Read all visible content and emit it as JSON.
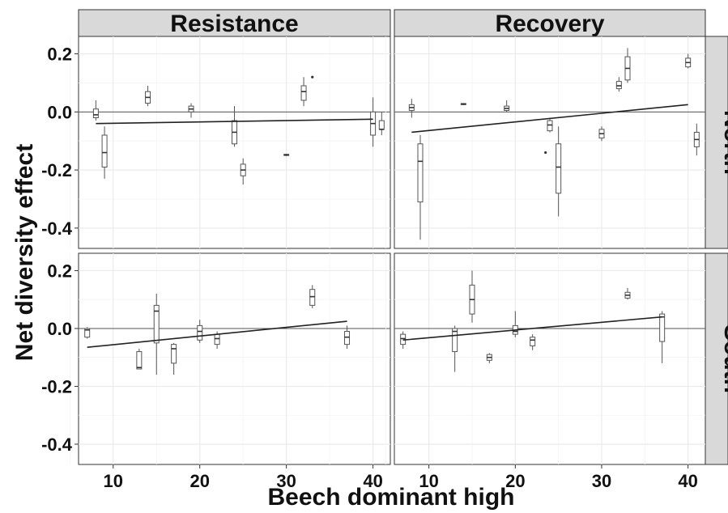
{
  "chart_data": {
    "type": "boxplot",
    "xlabel": "Beech dominant high",
    "ylabel": "Net diversity effect",
    "column_facets": [
      "Resistance",
      "Recovery"
    ],
    "row_facets": [
      "North",
      "South"
    ],
    "xlim": [
      6,
      42
    ],
    "ylim": [
      -0.47,
      0.26
    ],
    "x_ticks": [
      10,
      20,
      30,
      40
    ],
    "y_ticks": [
      0.2,
      0.0,
      -0.2,
      -0.4
    ],
    "y_tick_labels": [
      "0.2",
      "0.0",
      "-0.2",
      "-0.4"
    ],
    "reference_line_y": 0,
    "grid": true,
    "panels": [
      {
        "column": "Resistance",
        "row": "North",
        "trend": [
          [
            8,
            -0.04
          ],
          [
            40,
            -0.025
          ]
        ],
        "boxes": [
          {
            "x": 8,
            "min": -0.03,
            "q1": -0.02,
            "median": -0.01,
            "q3": 0.01,
            "max": 0.04
          },
          {
            "x": 9,
            "min": -0.23,
            "q1": -0.19,
            "median": -0.14,
            "q3": -0.08,
            "max": -0.05
          },
          {
            "x": 14,
            "min": 0.02,
            "q1": 0.03,
            "median": 0.05,
            "q3": 0.07,
            "max": 0.09
          },
          {
            "x": 19,
            "min": -0.02,
            "q1": 0.0,
            "median": 0.01,
            "q3": 0.02,
            "max": 0.03
          },
          {
            "x": 24,
            "min": -0.12,
            "q1": -0.11,
            "median": -0.07,
            "q3": -0.03,
            "max": 0.02
          },
          {
            "x": 25,
            "min": -0.25,
            "q1": -0.22,
            "median": -0.2,
            "q3": -0.18,
            "max": -0.16
          },
          {
            "x": 30,
            "min": -0.152,
            "q1": -0.15,
            "median": -0.148,
            "q3": -0.146,
            "max": -0.145
          },
          {
            "x": 32,
            "min": 0.02,
            "q1": 0.04,
            "median": 0.07,
            "q3": 0.09,
            "max": 0.12
          },
          {
            "x": 40,
            "min": -0.12,
            "q1": -0.08,
            "median": -0.04,
            "q3": 0.0,
            "max": 0.05
          },
          {
            "x": 41,
            "min": -0.08,
            "q1": -0.06,
            "median": -0.06,
            "q3": -0.03,
            "max": 0.0
          }
        ],
        "outliers": [
          {
            "x": 33,
            "y": 0.12
          }
        ]
      },
      {
        "column": "Recovery",
        "row": "North",
        "trend": [
          [
            8,
            -0.07
          ],
          [
            40,
            0.025
          ]
        ],
        "boxes": [
          {
            "x": 8,
            "min": -0.02,
            "q1": 0.005,
            "median": 0.015,
            "q3": 0.025,
            "max": 0.045
          },
          {
            "x": 9,
            "min": -0.44,
            "q1": -0.31,
            "median": -0.17,
            "q3": -0.11,
            "max": -0.08
          },
          {
            "x": 14,
            "min": 0.024,
            "q1": 0.025,
            "median": 0.027,
            "q3": 0.029,
            "max": 0.03
          },
          {
            "x": 19,
            "min": 0.0,
            "q1": 0.005,
            "median": 0.012,
            "q3": 0.02,
            "max": 0.04
          },
          {
            "x": 24,
            "min": -0.07,
            "q1": -0.065,
            "median": -0.045,
            "q3": -0.03,
            "max": -0.02
          },
          {
            "x": 25,
            "min": -0.36,
            "q1": -0.28,
            "median": -0.19,
            "q3": -0.11,
            "max": -0.05
          },
          {
            "x": 30,
            "min": -0.1,
            "q1": -0.09,
            "median": -0.075,
            "q3": -0.06,
            "max": -0.05
          },
          {
            "x": 32,
            "min": 0.07,
            "q1": 0.08,
            "median": 0.09,
            "q3": 0.105,
            "max": 0.12
          },
          {
            "x": 33,
            "min": 0.1,
            "q1": 0.11,
            "median": 0.15,
            "q3": 0.19,
            "max": 0.22
          },
          {
            "x": 40,
            "min": 0.15,
            "q1": 0.155,
            "median": 0.17,
            "q3": 0.185,
            "max": 0.2
          },
          {
            "x": 41,
            "min": -0.15,
            "q1": -0.12,
            "median": -0.095,
            "q3": -0.07,
            "max": -0.04
          }
        ],
        "outliers": [
          {
            "x": 23.5,
            "y": -0.14
          }
        ]
      },
      {
        "column": "Resistance",
        "row": "South",
        "trend": [
          [
            7,
            -0.065
          ],
          [
            37,
            0.025
          ]
        ],
        "boxes": [
          {
            "x": 7,
            "min": -0.035,
            "q1": -0.03,
            "median": -0.005,
            "q3": 0.0,
            "max": 0.005
          },
          {
            "x": 13,
            "min": -0.14,
            "q1": -0.14,
            "median": -0.135,
            "q3": -0.08,
            "max": -0.07
          },
          {
            "x": 15,
            "min": -0.16,
            "q1": -0.05,
            "median": 0.06,
            "q3": 0.08,
            "max": 0.12
          },
          {
            "x": 17,
            "min": -0.16,
            "q1": -0.12,
            "median": -0.07,
            "q3": -0.055,
            "max": -0.05
          },
          {
            "x": 20,
            "min": -0.05,
            "q1": -0.04,
            "median": -0.01,
            "q3": 0.01,
            "max": 0.03
          },
          {
            "x": 22,
            "min": -0.07,
            "q1": -0.055,
            "median": -0.035,
            "q3": -0.02,
            "max": -0.01
          },
          {
            "x": 33,
            "min": 0.07,
            "q1": 0.08,
            "median": 0.11,
            "q3": 0.135,
            "max": 0.15
          },
          {
            "x": 37,
            "min": -0.07,
            "q1": -0.055,
            "median": -0.03,
            "q3": -0.01,
            "max": 0.01
          }
        ],
        "outliers": []
      },
      {
        "column": "Recovery",
        "row": "South",
        "trend": [
          [
            7,
            -0.04
          ],
          [
            37,
            0.04
          ]
        ],
        "boxes": [
          {
            "x": 7,
            "min": -0.07,
            "q1": -0.055,
            "median": -0.035,
            "q3": -0.02,
            "max": -0.01
          },
          {
            "x": 13,
            "min": -0.15,
            "q1": -0.08,
            "median": -0.01,
            "q3": 0.0,
            "max": 0.01
          },
          {
            "x": 15,
            "min": 0.02,
            "q1": 0.05,
            "median": 0.1,
            "q3": 0.15,
            "max": 0.2
          },
          {
            "x": 17,
            "min": -0.12,
            "q1": -0.11,
            "median": -0.1,
            "q3": -0.09,
            "max": -0.085
          },
          {
            "x": 20,
            "min": -0.03,
            "q1": -0.02,
            "median": -0.01,
            "q3": 0.01,
            "max": 0.06
          },
          {
            "x": 22,
            "min": -0.075,
            "q1": -0.06,
            "median": -0.04,
            "q3": -0.03,
            "max": -0.02
          },
          {
            "x": 33,
            "min": 0.1,
            "q1": 0.105,
            "median": 0.115,
            "q3": 0.125,
            "max": 0.14
          },
          {
            "x": 37,
            "min": -0.12,
            "q1": -0.045,
            "median": 0.04,
            "q3": 0.05,
            "max": 0.06
          }
        ],
        "outliers": []
      }
    ]
  }
}
